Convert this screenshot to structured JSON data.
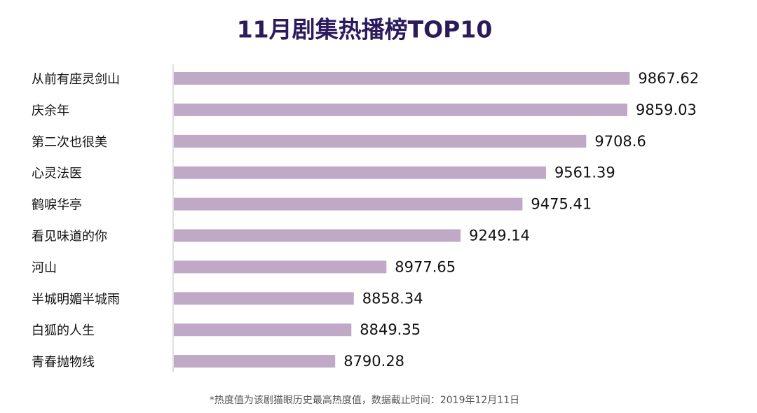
{
  "chart_data": {
    "type": "bar",
    "orientation": "horizontal",
    "title": "11月剧集热播榜TOP10",
    "categories": [
      "从前有座灵剑山",
      "庆余年",
      "第二次也很美",
      "心灵法医",
      "鹤唳华亭",
      "看见味道的你",
      "河山",
      "半城明媚半城雨",
      "白狐的人生",
      "青春抛物线"
    ],
    "values": [
      9867.62,
      9859.03,
      9708.6,
      9561.39,
      9475.41,
      9249.14,
      8977.65,
      8858.34,
      8849.35,
      8790.28
    ],
    "color": "#bfa9c7",
    "xlim": [
      8200,
      9900
    ],
    "footnote": "*热度值为该剧猫眼历史最高热度值，数据截止时间：2019年12月11日"
  }
}
